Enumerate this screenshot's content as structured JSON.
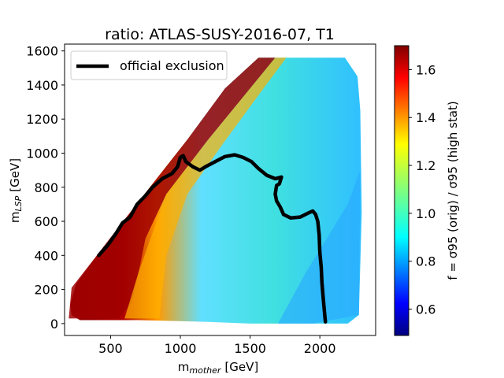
{
  "chart_data": {
    "type": "heatmap",
    "title": "ratio:  ATLAS-SUSY-2016-07,  T1",
    "xlabel": "m_mother [GeV]",
    "xlabel_main": "m",
    "xlabel_sub": "mother",
    "xlabel_unit": "[GeV]",
    "ylabel": "m_LSP [GeV]",
    "ylabel_main": "m",
    "ylabel_sub": "LSP",
    "ylabel_unit": "[GeV]",
    "xlim": [
      170,
      2400
    ],
    "ylim": [
      -70,
      1640
    ],
    "xticks": [
      500,
      1000,
      1500,
      2000
    ],
    "yticks": [
      0,
      200,
      400,
      600,
      800,
      1000,
      1200,
      1400,
      1600
    ],
    "colorbar": {
      "label": "f = σ95 (orig) / σ95 (high stat)",
      "range": [
        0.49,
        1.7
      ],
      "ticks": [
        0.6,
        0.8,
        1.0,
        1.2,
        1.4,
        1.6
      ]
    },
    "legend": {
      "placement": "top-left",
      "entries": [
        "official exclusion"
      ]
    },
    "series": [
      {
        "name": "official exclusion",
        "color": "#000000",
        "points": [
          [
            415,
            400
          ],
          [
            480,
            460
          ],
          [
            540,
            530
          ],
          [
            585,
            590
          ],
          [
            640,
            625
          ],
          [
            690,
            700
          ],
          [
            750,
            750
          ],
          [
            800,
            800
          ],
          [
            870,
            850
          ],
          [
            940,
            880
          ],
          [
            980,
            920
          ],
          [
            1000,
            975
          ],
          [
            1020,
            985
          ],
          [
            1040,
            950
          ],
          [
            1090,
            920
          ],
          [
            1140,
            900
          ],
          [
            1180,
            920
          ],
          [
            1250,
            950
          ],
          [
            1320,
            980
          ],
          [
            1390,
            990
          ],
          [
            1450,
            975
          ],
          [
            1510,
            950
          ],
          [
            1560,
            910
          ],
          [
            1620,
            870
          ],
          [
            1680,
            850
          ],
          [
            1725,
            860
          ],
          [
            1710,
            820
          ],
          [
            1690,
            810
          ],
          [
            1680,
            760
          ],
          [
            1690,
            720
          ],
          [
            1715,
            685
          ],
          [
            1740,
            640
          ],
          [
            1790,
            620
          ],
          [
            1860,
            625
          ],
          [
            1920,
            650
          ],
          [
            1950,
            660
          ],
          [
            1970,
            640
          ],
          [
            1985,
            600
          ],
          [
            1995,
            520
          ],
          [
            2000,
            420
          ],
          [
            2010,
            330
          ],
          [
            2015,
            240
          ],
          [
            2025,
            140
          ],
          [
            2040,
            10
          ]
        ]
      }
    ],
    "grid_region": {
      "x": [
        100,
        2300
      ],
      "y": [
        0,
        1600
      ],
      "boundary": [
        [
          220,
          50
        ],
        [
          210,
          110
        ],
        [
          250,
          230
        ],
        [
          420,
          420
        ],
        [
          600,
          610
        ],
        [
          820,
          840
        ],
        [
          1050,
          1080
        ],
        [
          1320,
          1380
        ],
        [
          1560,
          1560
        ],
        [
          2180,
          1560
        ],
        [
          2270,
          1450
        ],
        [
          2290,
          1250
        ],
        [
          2300,
          650
        ],
        [
          2280,
          50
        ],
        [
          2200,
          0
        ],
        [
          1900,
          0
        ],
        [
          1500,
          0
        ],
        [
          1200,
          10
        ],
        [
          700,
          20
        ],
        [
          280,
          20
        ]
      ]
    },
    "grid": false
  }
}
